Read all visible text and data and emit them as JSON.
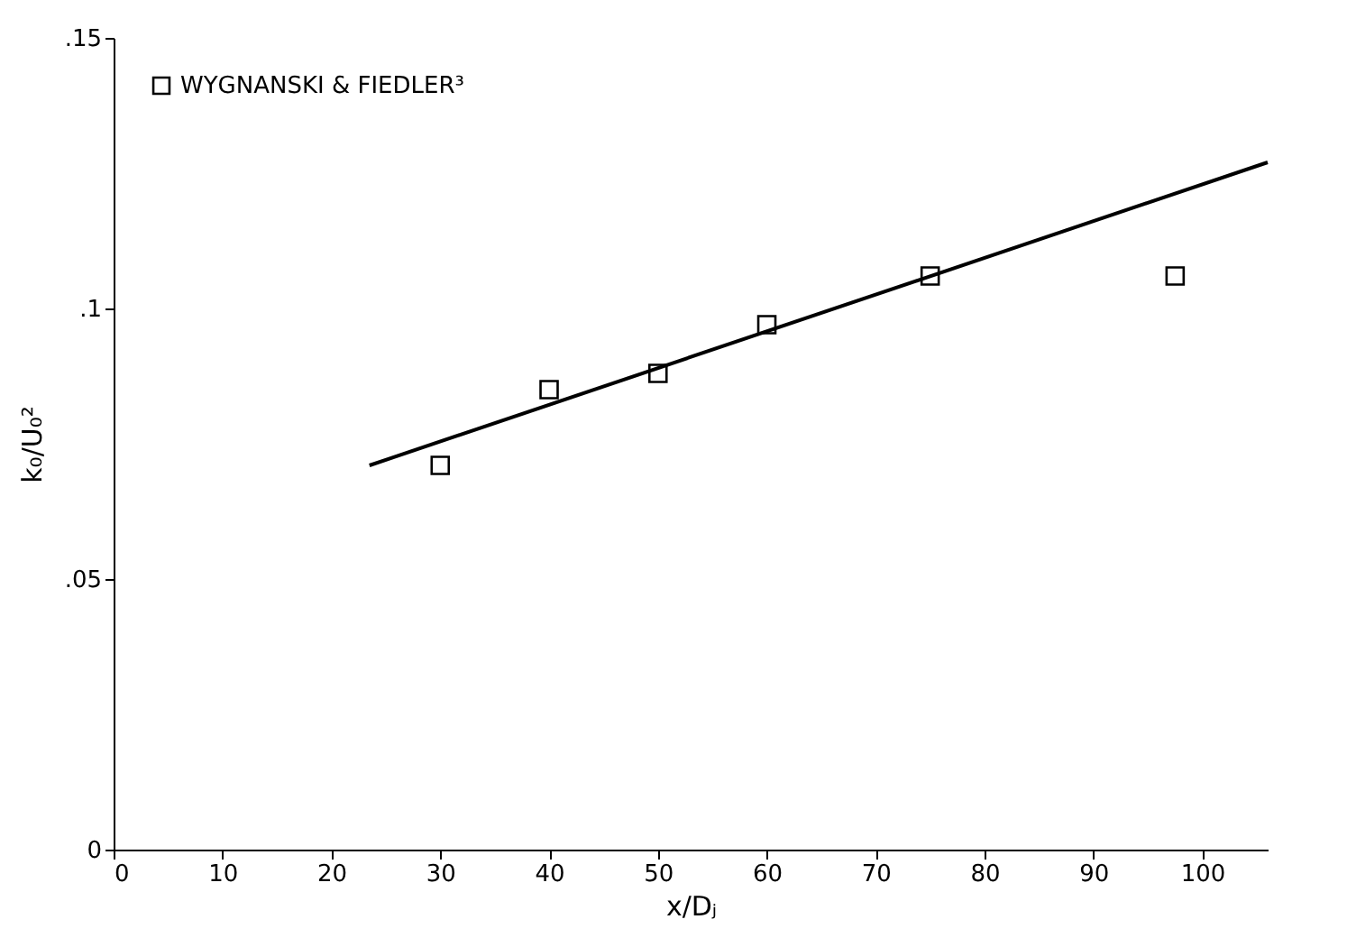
{
  "chart_data": {
    "type": "scatter",
    "xlabel": "x/Dⱼ",
    "ylabel": "k₀/U₀²",
    "xlim": [
      0,
      106
    ],
    "xticks": [
      0,
      10,
      20,
      30,
      40,
      50,
      60,
      70,
      80,
      90,
      100
    ],
    "ylim": [
      0,
      0.15
    ],
    "yticks": [
      {
        "value": 0,
        "label": "0"
      },
      {
        "value": 0.05,
        "label": ".05"
      },
      {
        "value": 0.1,
        "label": ".1"
      },
      {
        "value": 0.15,
        "label": ".15"
      }
    ],
    "grid": false,
    "legend": "top left",
    "series": [
      {
        "name": "WYGNANSKI & FIEDLER³",
        "color": "#000000",
        "marker": "square",
        "x": [
          30,
          40,
          50,
          60,
          75,
          97.5
        ],
        "values": [
          0.071,
          0.085,
          0.088,
          0.097,
          0.106,
          0.106
        ]
      },
      {
        "type": "line",
        "color": "#000000",
        "x": [
          23.5,
          106
        ],
        "values": [
          0.071,
          0.127
        ]
      }
    ]
  }
}
